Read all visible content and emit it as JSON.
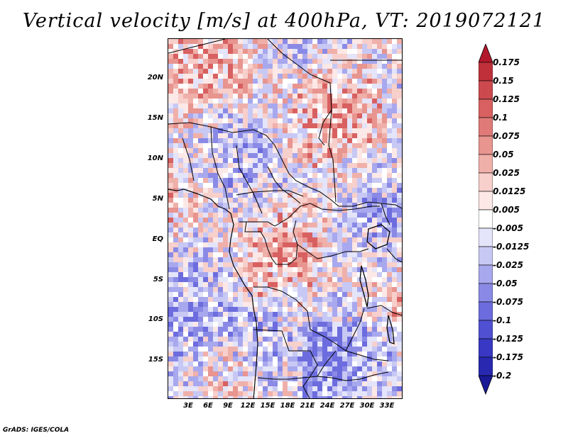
{
  "title": "Vertical velocity [m/s] at 400hPa, VT: 2019072121",
  "credit": "GrADS: IGES/COLA",
  "lat_labels": [
    "20N",
    "15N",
    "10N",
    "5N",
    "EQ",
    "5S",
    "10S",
    "15S"
  ],
  "lon_labels": [
    "3E",
    "6E",
    "9E",
    "12E",
    "15E",
    "18E",
    "21E",
    "24E",
    "27E",
    "30E",
    "33E"
  ],
  "colorbar": {
    "labels": [
      "0.175",
      "0.15",
      "0.125",
      "0.1",
      "0.075",
      "0.05",
      "0.025",
      "0.0125",
      "0.005",
      "-0.005",
      "-0.0125",
      "-0.025",
      "-0.05",
      "-0.075",
      "-0.1",
      "-0.125",
      "-0.175",
      "-0.2"
    ],
    "colors": [
      "#b2182b",
      "#c0303a",
      "#cc4a4e",
      "#d86060",
      "#e07a78",
      "#e8948f",
      "#f0b0aa",
      "#f7cfcb",
      "#fce8e6",
      "#ffffff",
      "#e4e4fa",
      "#c8c8f4",
      "#a8a8ee",
      "#8a8ae6",
      "#6c6cde",
      "#5050d2",
      "#3838c4",
      "#2828b0",
      "#1a1a96"
    ]
  }
}
